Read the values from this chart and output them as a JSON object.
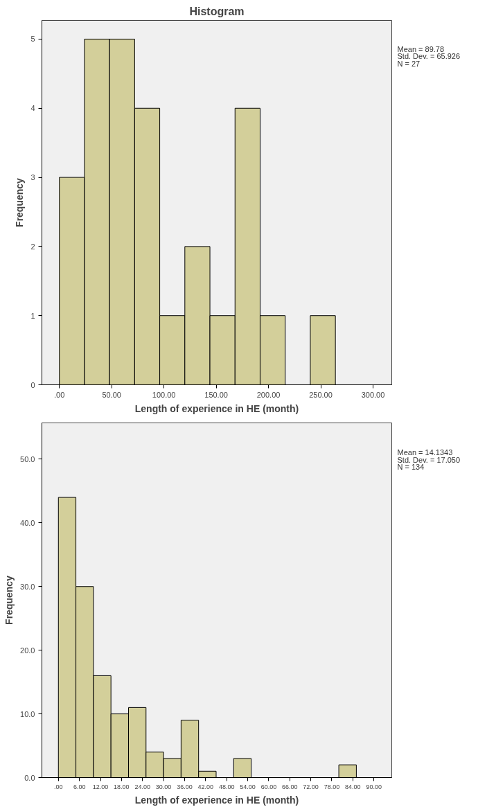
{
  "chart_data": [
    {
      "type": "histogram",
      "title": "Histogram",
      "xlabel": "Length of experience in HE (month)",
      "ylabel": "Frequency",
      "bins": [
        0,
        24,
        48,
        72,
        96,
        120,
        144,
        168,
        192,
        216,
        240,
        264
      ],
      "values": [
        3,
        5,
        5,
        4,
        1,
        2,
        1,
        4,
        1,
        0,
        1
      ],
      "color": "#d3cf9a",
      "xlim": [
        -16.7,
        317.9
      ],
      "ylim": [
        0,
        5.27
      ],
      "xticks": [
        {
          "value": 0,
          "label": ".00"
        },
        {
          "value": 50,
          "label": "50.00"
        },
        {
          "value": 100,
          "label": "100.00"
        },
        {
          "value": 150,
          "label": "150.00"
        },
        {
          "value": 200,
          "label": "200.00"
        },
        {
          "value": 250,
          "label": "250.00"
        },
        {
          "value": 300,
          "label": "300.00"
        }
      ],
      "yticks": [
        0,
        1,
        2,
        3,
        4,
        5
      ],
      "grid": false,
      "annotations": [
        "Mean = 89.78",
        "Std. Dev. = 65.926",
        "N = 27"
      ]
    },
    {
      "type": "histogram",
      "xlabel": "Length of experience in HE (month)",
      "ylabel": "Frequency",
      "bins": [
        0,
        5,
        10,
        15,
        20,
        25,
        30,
        35,
        40,
        45,
        50,
        55,
        60,
        65,
        70,
        75,
        80,
        85
      ],
      "values": [
        44,
        30,
        16,
        10,
        11,
        4,
        3,
        9,
        1,
        0,
        3,
        0,
        0,
        0,
        0,
        0,
        2
      ],
      "color": "#d3cf9a",
      "xlim": [
        -4.7,
        95.1
      ],
      "ylim": [
        0,
        55.7
      ],
      "xticks": [
        {
          "value": 0,
          "label": ".00"
        },
        {
          "value": 6,
          "label": "6.00"
        },
        {
          "value": 12,
          "label": "12.00"
        },
        {
          "value": 18,
          "label": "18.00"
        },
        {
          "value": 24,
          "label": "24.00"
        },
        {
          "value": 30,
          "label": "30.00"
        },
        {
          "value": 36,
          "label": "36.00"
        },
        {
          "value": 42,
          "label": "42.00"
        },
        {
          "value": 48,
          "label": "48.00"
        },
        {
          "value": 54,
          "label": "54.00"
        },
        {
          "value": 60,
          "label": "60.00"
        },
        {
          "value": 66,
          "label": "66.00"
        },
        {
          "value": 72,
          "label": "72.00"
        },
        {
          "value": 78,
          "label": "78.00"
        },
        {
          "value": 84,
          "label": "84.00"
        },
        {
          "value": 90,
          "label": "90.00"
        }
      ],
      "yticks": [
        {
          "value": 0,
          "label": "0.0"
        },
        {
          "value": 10,
          "label": "10.0"
        },
        {
          "value": 20,
          "label": "20.0"
        },
        {
          "value": 30,
          "label": "30.0"
        },
        {
          "value": 40,
          "label": "40.0"
        },
        {
          "value": 50,
          "label": "50.0"
        }
      ],
      "grid": false,
      "annotations": [
        "Mean = 14.1343",
        "Std. Dev. = 17.050",
        "N = 134"
      ]
    }
  ]
}
